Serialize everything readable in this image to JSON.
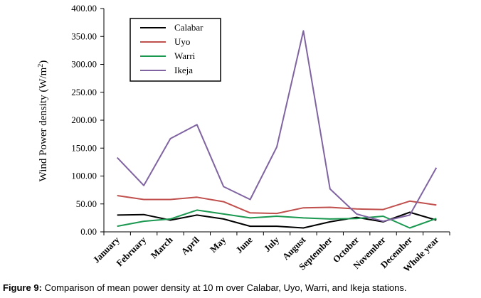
{
  "chart_data": {
    "type": "line",
    "ylabel": "Wind Power density (W/m²)",
    "ylabel_main": "Wind Power density (W/m",
    "ylabel_sup": "2",
    "ylabel_end": ")",
    "ylim": [
      0,
      400
    ],
    "yticks": [
      "0.00",
      "50.00",
      "100.00",
      "150.00",
      "200.00",
      "250.00",
      "300.00",
      "350.00",
      "400.00"
    ],
    "categories": [
      "January",
      "February",
      "March",
      "April",
      "May",
      "June",
      "July",
      "August",
      "September",
      "October",
      "November",
      "December",
      "Whole year"
    ],
    "legend_position": "top-left",
    "grid": false,
    "series": [
      {
        "name": "Calabar",
        "color": "#000000",
        "values": [
          30,
          31,
          21,
          30,
          23,
          10,
          10,
          7,
          18,
          26,
          18,
          35,
          21
        ]
      },
      {
        "name": "Uyo",
        "color": "#c0504d",
        "values": [
          65,
          58,
          58,
          62,
          54,
          34,
          33,
          43,
          44,
          41,
          40,
          55,
          48
        ]
      },
      {
        "name": "Warri",
        "color": "#1a9850",
        "values": [
          10,
          19,
          23,
          39,
          32,
          25,
          28,
          25,
          23,
          24,
          28,
          7,
          24
        ]
      },
      {
        "name": "Ikeja",
        "color": "#8064a2",
        "values": [
          133,
          83,
          167,
          192,
          81,
          58,
          152,
          360,
          77,
          32,
          19,
          30,
          115
        ]
      }
    ]
  },
  "caption": {
    "label": "Figure 9:",
    "text": " Comparison of mean power density at 10 m over Calabar, Uyo, Warri, and Ikeja stations."
  }
}
